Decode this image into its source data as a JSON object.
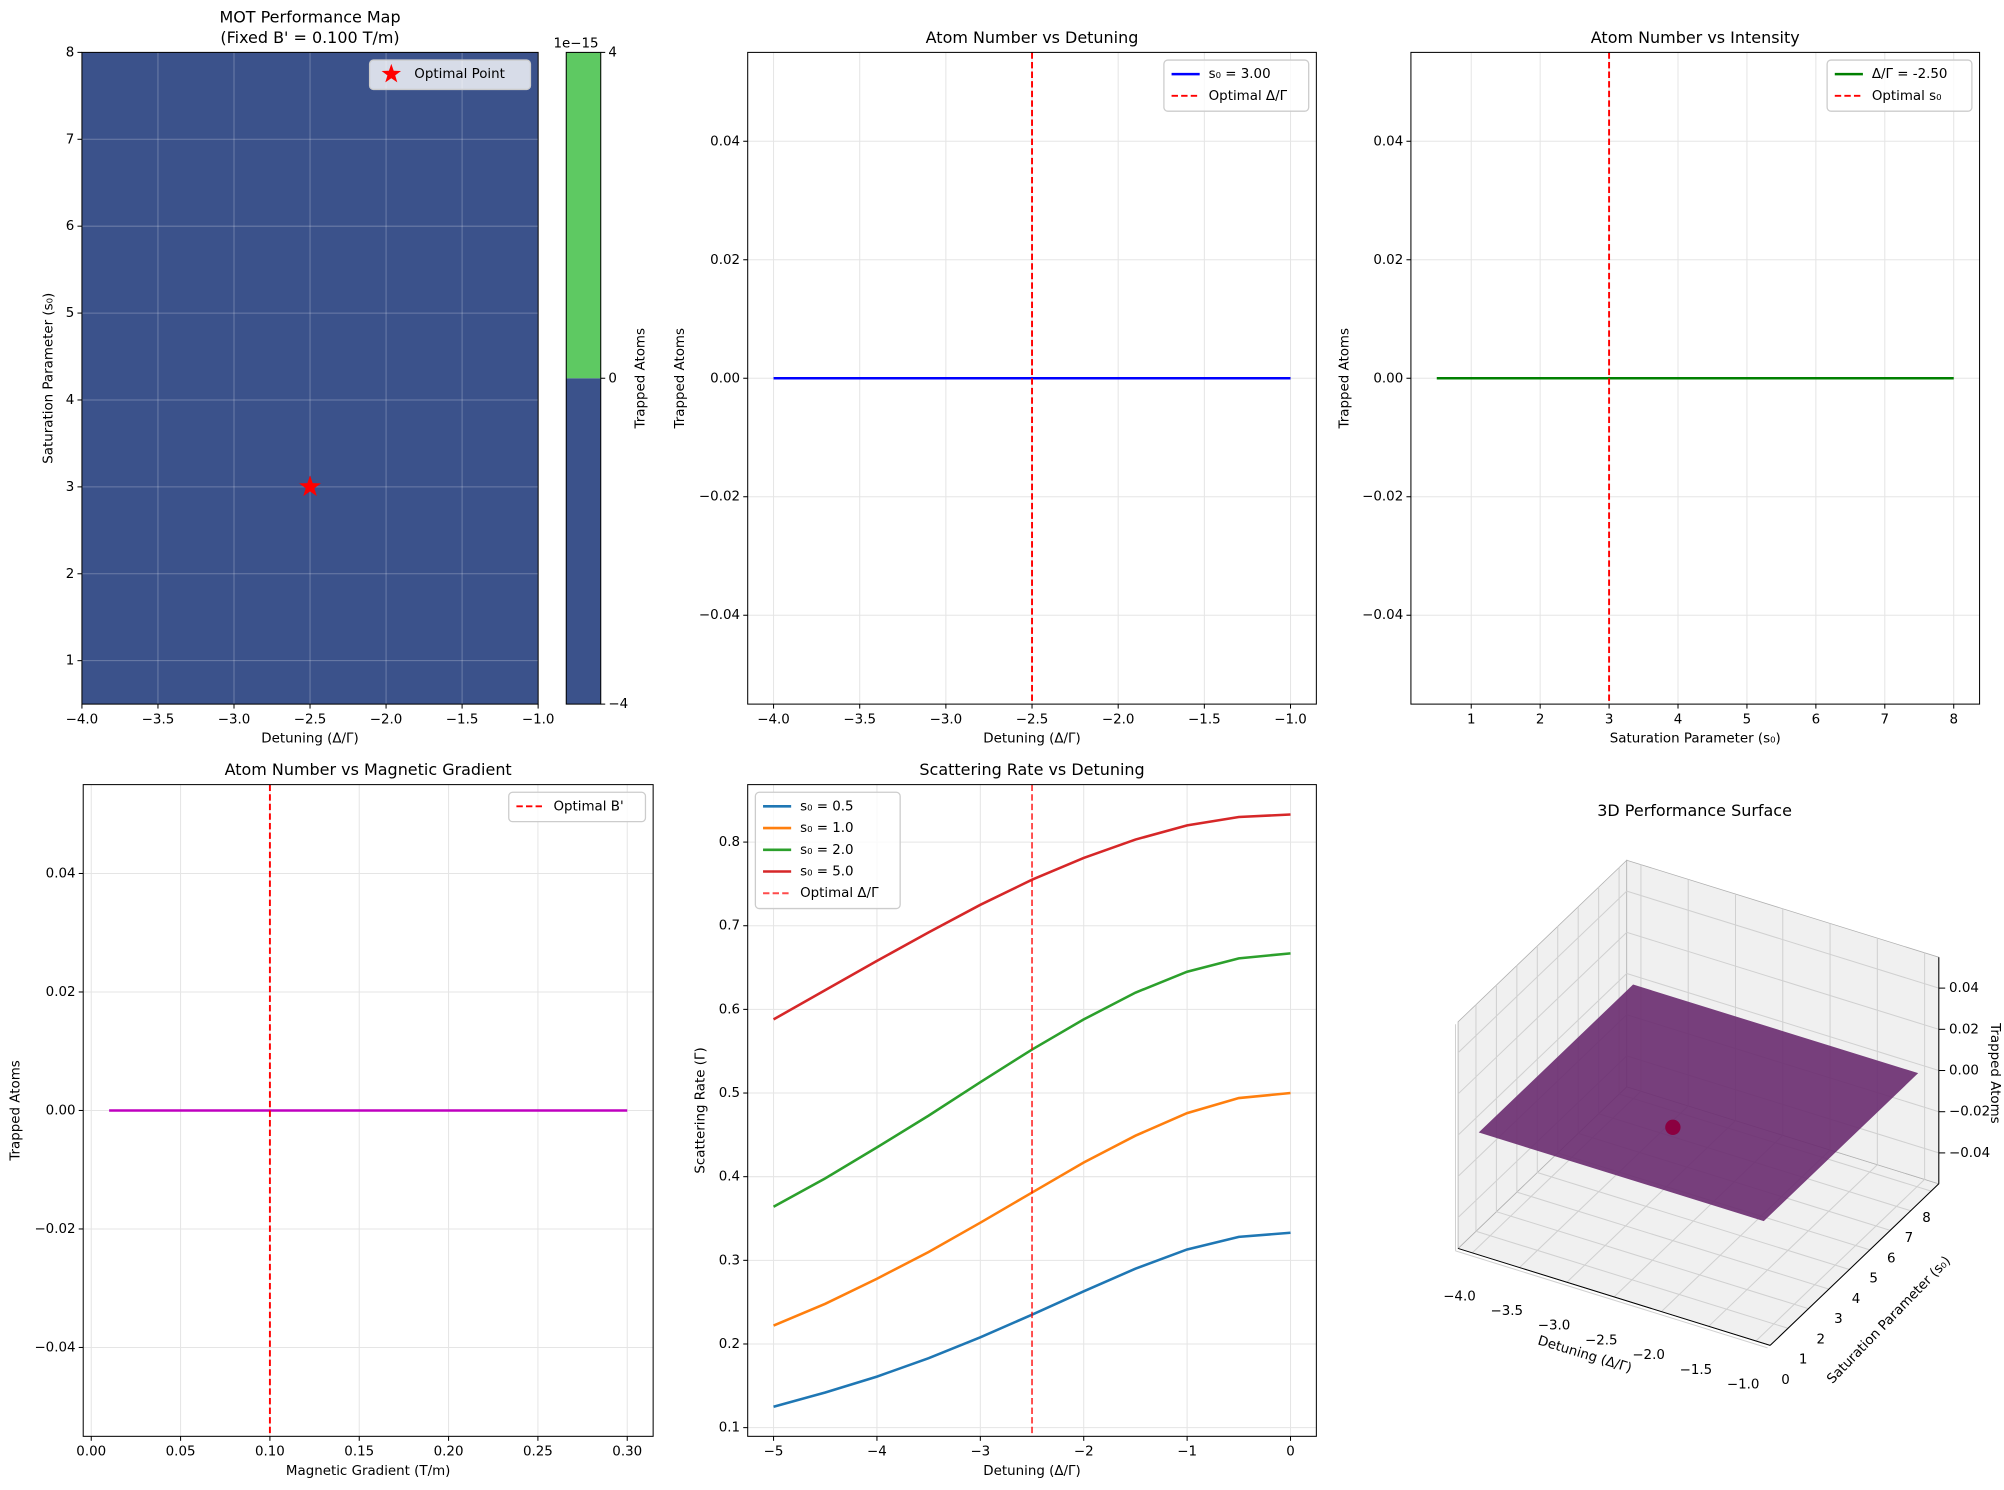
{
  "chart_data": [
    {
      "type": "contour",
      "title": [
        "MOT Performance Map",
        "(Fixed B' = 0.100 T/m)"
      ],
      "xlabel": "Detuning (Δ/Γ)",
      "ylabel": "Saturation Parameter (s₀)",
      "xlim": [
        -4,
        -1
      ],
      "xticks": [
        {
          "value": -4,
          "label": "−4.0"
        },
        {
          "value": -3.5,
          "label": "−3.5"
        },
        {
          "value": -3,
          "label": "−3.0"
        },
        {
          "value": -2.5,
          "label": "−2.5"
        },
        {
          "value": -2,
          "label": "−2.0"
        },
        {
          "value": -1.5,
          "label": "−1.5"
        },
        {
          "value": -1,
          "label": "−1.0"
        }
      ],
      "ylim": [
        0.5,
        8
      ],
      "yticks": [
        1,
        2,
        3,
        4,
        5,
        6,
        7,
        8
      ],
      "grid": true,
      "levels": [
        {
          "value": -4,
          "label": "−4"
        },
        0,
        4
      ],
      "level_colors": [
        "#3b528b",
        "#5ec962"
      ],
      "colorbar_offset": "1e−15",
      "colorbar_label": "Trapped Atoms",
      "markers": [
        {
          "name": "Optimal Point",
          "x": -2.5,
          "y": 3,
          "color": "#ff0000"
        }
      ],
      "legend": "upper right"
    },
    {
      "type": "line",
      "title": "Atom Number vs Detuning",
      "xlabel": "Detuning (Δ/Γ)",
      "ylabel": "Trapped Atoms",
      "xlim": [
        -4.15,
        -0.85
      ],
      "xticks": [
        {
          "value": -4,
          "label": "−4.0"
        },
        {
          "value": -3.5,
          "label": "−3.5"
        },
        {
          "value": -3,
          "label": "−3.0"
        },
        {
          "value": -2.5,
          "label": "−2.5"
        },
        {
          "value": -2,
          "label": "−2.0"
        },
        {
          "value": -1.5,
          "label": "−1.5"
        },
        {
          "value": -1,
          "label": "−1.0"
        }
      ],
      "ylim": [
        -0.055,
        0.055
      ],
      "yticks": [
        {
          "value": -0.04,
          "label": "−0.04"
        },
        {
          "value": -0.02,
          "label": "−0.02"
        },
        {
          "value": 0,
          "label": "0.00"
        },
        {
          "value": 0.02,
          "label": "0.02"
        },
        {
          "value": 0.04,
          "label": "0.04"
        }
      ],
      "grid": true,
      "x": [
        -4,
        -1
      ],
      "series": [
        {
          "name": "s₀ = 3.00",
          "color": "#0000ff",
          "values": [
            0,
            0
          ]
        }
      ],
      "vlines": [
        {
          "name": "Optimal Δ/Γ",
          "x": -2.5,
          "color": "#ff0000"
        }
      ],
      "legend": "upper right"
    },
    {
      "type": "line",
      "title": "Atom Number vs Intensity",
      "xlabel": "Saturation Parameter (s₀)",
      "ylabel": "Trapped Atoms",
      "xlim": [
        0.125,
        8.375
      ],
      "xticks": [
        1,
        2,
        3,
        4,
        5,
        6,
        7,
        8
      ],
      "ylim": [
        -0.055,
        0.055
      ],
      "yticks": [
        {
          "value": -0.04,
          "label": "−0.04"
        },
        {
          "value": -0.02,
          "label": "−0.02"
        },
        {
          "value": 0,
          "label": "0.00"
        },
        {
          "value": 0.02,
          "label": "0.02"
        },
        {
          "value": 0.04,
          "label": "0.04"
        }
      ],
      "grid": true,
      "x": [
        0.5,
        8
      ],
      "series": [
        {
          "name": "Δ/Γ = -2.50",
          "color": "#008000",
          "values": [
            0,
            0
          ]
        }
      ],
      "vlines": [
        {
          "name": "Optimal s₀",
          "x": 3,
          "color": "#ff0000"
        }
      ],
      "legend": "upper right"
    },
    {
      "type": "line",
      "title": "Atom Number vs Magnetic Gradient",
      "xlabel": "Magnetic Gradient (T/m)",
      "ylabel": "Trapped Atoms",
      "xlim": [
        -0.0045,
        0.3145
      ],
      "xticks": [
        {
          "value": 0,
          "label": "0.00"
        },
        0.05,
        {
          "value": 0.1,
          "label": "0.10"
        },
        0.15,
        {
          "value": 0.2,
          "label": "0.20"
        },
        0.25,
        {
          "value": 0.3,
          "label": "0.30"
        }
      ],
      "ylim": [
        -0.055,
        0.055
      ],
      "yticks": [
        {
          "value": -0.04,
          "label": "−0.04"
        },
        {
          "value": -0.02,
          "label": "−0.02"
        },
        {
          "value": 0,
          "label": "0.00"
        },
        {
          "value": 0.02,
          "label": "0.02"
        },
        {
          "value": 0.04,
          "label": "0.04"
        }
      ],
      "grid": true,
      "x": [
        0.01,
        0.3
      ],
      "series": [
        {
          "color": "#bf00bf",
          "values": [
            0,
            0
          ]
        }
      ],
      "vlines": [
        {
          "name": "Optimal B'",
          "x": 0.1,
          "color": "#ff0000"
        }
      ],
      "legend": "upper right"
    },
    {
      "type": "line",
      "title": "Scattering Rate vs Detuning",
      "xlabel": "Detuning (Δ/Γ)",
      "ylabel": "Scattering Rate (Γ)",
      "xlim": [
        -5.25,
        0.25
      ],
      "xticks": [
        {
          "value": -5,
          "label": "−5"
        },
        {
          "value": -4,
          "label": "−4"
        },
        {
          "value": -3,
          "label": "−3"
        },
        {
          "value": -2,
          "label": "−2"
        },
        {
          "value": -1,
          "label": "−1"
        },
        0
      ],
      "ylim": [
        0.0896,
        0.8687
      ],
      "yticks": [
        0.1,
        0.2,
        0.3,
        0.4,
        0.5,
        0.6,
        0.7,
        0.8
      ],
      "grid": true,
      "x": [
        -5,
        -4.5,
        -4,
        -3.5,
        -3,
        -2.5,
        -2,
        -1.5,
        -1,
        -0.5,
        0
      ],
      "series": [
        {
          "name": "s₀ = 0.5",
          "color": "#1f77b4",
          "values": [
            0.125,
            0.142,
            0.161,
            0.183,
            0.208,
            0.235,
            0.263,
            0.29,
            0.313,
            0.328,
            0.333
          ]
        },
        {
          "name": "s₀ = 1.0",
          "color": "#ff7f0e",
          "values": [
            0.222,
            0.248,
            0.278,
            0.31,
            0.345,
            0.381,
            0.417,
            0.449,
            0.476,
            0.494,
            0.5
          ]
        },
        {
          "name": "s₀ = 2.0",
          "color": "#2ca02c",
          "values": [
            0.364,
            0.398,
            0.435,
            0.473,
            0.513,
            0.552,
            0.588,
            0.62,
            0.645,
            0.661,
            0.667
          ]
        },
        {
          "name": "s₀ = 5.0",
          "color": "#d62728",
          "values": [
            0.588,
            0.623,
            0.658,
            0.692,
            0.725,
            0.755,
            0.781,
            0.803,
            0.82,
            0.83,
            0.833
          ]
        }
      ],
      "vlines": [
        {
          "name": "Optimal Δ/Γ",
          "x": -2.5,
          "color": "#ff0000",
          "opacity": 0.7
        }
      ],
      "legend": "upper left"
    },
    {
      "type": "surface3d",
      "title": "3D Performance Surface",
      "xlabel": "Detuning (Δ/Γ)",
      "ylabel": "Saturation Parameter (s₀)",
      "zlabel": "Trapped Atoms",
      "xlim": [
        -4.15,
        -0.85
      ],
      "xticks": [
        {
          "value": -4,
          "label": "−4.0"
        },
        {
          "value": -3.5,
          "label": "−3.5"
        },
        {
          "value": -3,
          "label": "−3.0"
        },
        {
          "value": -2.5,
          "label": "−2.5"
        },
        {
          "value": -2,
          "label": "−2.0"
        },
        {
          "value": -1.5,
          "label": "−1.5"
        },
        {
          "value": -1,
          "label": "−1.0"
        }
      ],
      "ylim": [
        0.125,
        8.375
      ],
      "yticks": [
        0,
        1,
        2,
        3,
        4,
        5,
        6,
        7,
        8
      ],
      "zlim": [
        -0.055,
        0.055
      ],
      "zticks": [
        {
          "value": -0.04,
          "label": "−0.04"
        },
        {
          "value": -0.02,
          "label": "−0.02"
        },
        {
          "value": 0,
          "label": "0.00"
        },
        {
          "value": 0.02,
          "label": "0.02"
        },
        {
          "value": 0.04,
          "label": "0.04"
        }
      ],
      "surface": {
        "x": [
          -4,
          -1
        ],
        "y": [
          0.5,
          8
        ],
        "z": [
          [
            0,
            0
          ],
          [
            0,
            0
          ]
        ],
        "color": "#6b2c70"
      },
      "point": {
        "x": -2.5,
        "y": 3,
        "z": 0,
        "color": "#8b0040"
      }
    }
  ]
}
